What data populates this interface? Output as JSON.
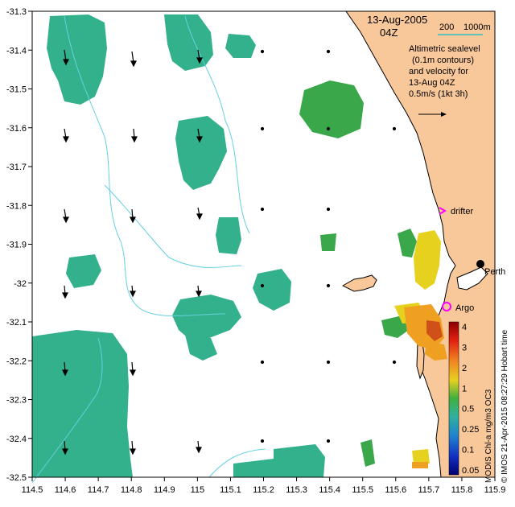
{
  "map": {
    "title_date": "13-Aug-2005",
    "title_time": "04Z",
    "scale_label_200": "200",
    "scale_label_1000m": "1000m",
    "legend_lines": [
      "Altimetric sealevel",
      "(0.1m contours)",
      "and velocity for",
      "13-Aug 04Z",
      "0.5m/s (1kt 3h)"
    ],
    "x_ticks": [
      "114.5",
      "114.6",
      "114.7",
      "114.8",
      "114.9",
      "115",
      "115.1",
      "115.2",
      "115.3",
      "115.4",
      "115.5",
      "115.6",
      "115.7",
      "115.8",
      "115.9"
    ],
    "y_ticks": [
      "-31.3",
      "-31.4",
      "-31.5",
      "-31.6",
      "-31.7",
      "-31.8",
      "-31.9",
      "-32",
      "-32.1",
      "-32.2",
      "-32.3",
      "-32.4",
      "-32.5"
    ],
    "labels": {
      "drifter": "drifter",
      "argo": "Argo",
      "perth": "Perth"
    },
    "colorbar": {
      "ticks": [
        "4",
        "3",
        "2",
        "1",
        "0.5",
        "0.25",
        "0.1",
        "0.05"
      ],
      "title": "MODIS Chl-a mg/m3 OC3"
    },
    "credit": "© IMOS 21-Apr-2015 08:27:29 Hobart time",
    "colors": {
      "land": "#f8c79a",
      "chl_teal": "#33b08c",
      "chl_green": "#3aa84a",
      "chl_yellow": "#e6d21e",
      "chl_orange": "#f0a020",
      "chl_red": "#d0501a",
      "drifter_marker": "#ff00ff",
      "scale_bar": "#2ec4c4",
      "contour": "#66d0e0"
    }
  }
}
